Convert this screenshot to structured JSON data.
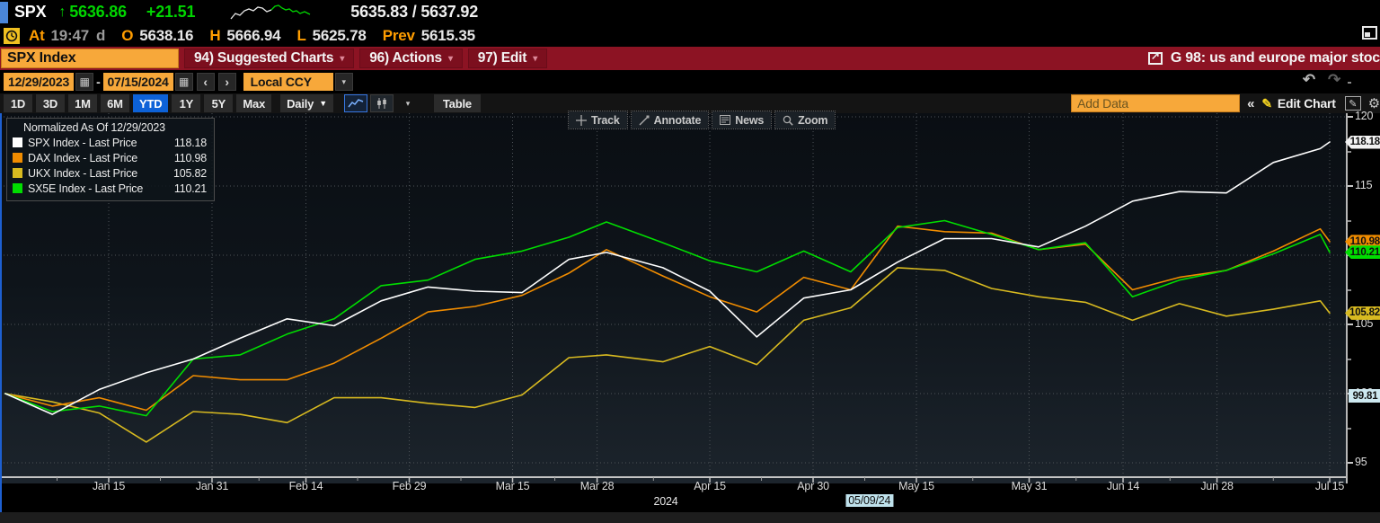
{
  "security_header": {
    "ticker": "SPX",
    "direction_arrow": "↑",
    "last_price": "5636.86",
    "change": "+21.51",
    "bid": "5635.83",
    "sep": "/",
    "ask": "5637.92",
    "at_label": "At",
    "time": "19:47",
    "delay_flag": "d",
    "open_label": "O",
    "open": "5638.16",
    "high_label": "H",
    "high": "5666.94",
    "low_label": "L",
    "low": "5625.78",
    "prev_label": "Prev",
    "prev": "5615.35"
  },
  "command_bar": {
    "security_input": "SPX Index",
    "menus": [
      "94) Suggested Charts",
      "96) Actions",
      "97) Edit"
    ],
    "chart_title": "G 98: us and europe major stoc"
  },
  "range_bar": {
    "start_date": "12/29/2023",
    "separator": "-",
    "end_date": "07/15/2024",
    "currency": "Local CCY",
    "prev_label": "‹",
    "next_label": "›"
  },
  "toolbar": {
    "periods": [
      "1D",
      "3D",
      "1M",
      "6M",
      "YTD",
      "1Y",
      "5Y",
      "Max"
    ],
    "selected_period": "YTD",
    "frequency": "Daily",
    "table_label": "Table",
    "add_data_placeholder": "Add Data",
    "collapse_label": "«",
    "edit_chart_label": "Edit Chart"
  },
  "chart_tools": [
    "Track",
    "Annotate",
    "News",
    "Zoom"
  ],
  "legend": {
    "title": "Normalized As Of 12/29/2023",
    "items": [
      {
        "name": "SPX Index - Last Price",
        "value": "118.18",
        "color": "#ffffff"
      },
      {
        "name": "DAX Index - Last Price",
        "value": "110.98",
        "color": "#f08c00"
      },
      {
        "name": "UKX Index - Last Price",
        "value": "105.82",
        "color": "#d8ba20"
      },
      {
        "name": "SX5E Index - Last Price",
        "value": "110.21",
        "color": "#00dd00"
      }
    ]
  },
  "chart_data": {
    "type": "line",
    "title": "Normalized As Of 12/29/2023",
    "normalized_base": 100,
    "ylim": [
      94.2,
      120.2
    ],
    "y_ticks": [
      95,
      100,
      105,
      110,
      115,
      120
    ],
    "x_year_label": "2024",
    "crosshair_date": "05/09/24",
    "crosshair_t": 92,
    "crosshair_value": "99.81",
    "x_ticks": [
      {
        "label": "Jan 15",
        "t": 11
      },
      {
        "label": "Jan 31",
        "t": 22
      },
      {
        "label": "Feb 14",
        "t": 32
      },
      {
        "label": "Feb 29",
        "t": 43
      },
      {
        "label": "Mar 15",
        "t": 54
      },
      {
        "label": "Mar 28",
        "t": 63
      },
      {
        "label": "Apr 15",
        "t": 75
      },
      {
        "label": "Apr 30",
        "t": 86
      },
      {
        "label": "May 15",
        "t": 97
      },
      {
        "label": "May 31",
        "t": 109
      },
      {
        "label": "Jun 14",
        "t": 119
      },
      {
        "label": "Jun 28",
        "t": 129
      },
      {
        "label": "Jul 15",
        "t": 141
      }
    ],
    "t_max": 141,
    "dates": [
      "12/29",
      "01/05",
      "01/12",
      "01/19",
      "01/26",
      "02/02",
      "02/09",
      "02/16",
      "02/23",
      "03/01",
      "03/08",
      "03/15",
      "03/22",
      "03/28",
      "04/05",
      "04/12",
      "04/19",
      "04/26",
      "05/03",
      "05/10",
      "05/17",
      "05/24",
      "05/31",
      "06/07",
      "06/14",
      "06/21",
      "06/28",
      "07/05",
      "07/12",
      "07/15"
    ],
    "t": [
      0,
      5,
      10,
      15,
      20,
      25,
      30,
      35,
      40,
      45,
      50,
      55,
      60,
      64,
      70,
      75,
      80,
      85,
      90,
      95,
      100,
      105,
      110,
      115,
      120,
      125,
      130,
      135,
      140,
      141
    ],
    "series": [
      {
        "name": "UKX Index",
        "color": "#d8ba20",
        "values": [
          100,
          99.4,
          98.6,
          96.5,
          98.7,
          98.5,
          97.9,
          99.7,
          99.7,
          99.3,
          99,
          99.9,
          102.6,
          102.8,
          102.3,
          103.4,
          102.1,
          105.3,
          106.2,
          109.1,
          108.9,
          107.6,
          107,
          106.6,
          105.3,
          106.5,
          105.6,
          106.1,
          106.7,
          105.82
        ]
      },
      {
        "name": "DAX Index",
        "color": "#f08c00",
        "values": [
          100,
          99.1,
          99.7,
          98.8,
          101.3,
          101,
          101,
          102.2,
          104,
          105.9,
          106.3,
          107.1,
          108.7,
          110.4,
          108.5,
          107,
          105.9,
          108.4,
          107.5,
          112.1,
          111.7,
          111.6,
          110.4,
          110.8,
          107.5,
          108.4,
          108.9,
          110.3,
          111.9,
          110.98
        ]
      },
      {
        "name": "SX5E Index",
        "color": "#00dd00",
        "values": [
          100,
          98.7,
          99.1,
          98.4,
          102.5,
          102.8,
          104.3,
          105.4,
          107.8,
          108.2,
          109.7,
          110.3,
          111.3,
          112.4,
          110.9,
          109.6,
          108.8,
          110.3,
          108.8,
          112,
          112.5,
          111.5,
          110.4,
          110.9,
          107,
          108.2,
          108.9,
          110.1,
          111.5,
          110.21
        ]
      },
      {
        "name": "SPX Index",
        "color": "#ffffff",
        "values": [
          100,
          98.5,
          100.3,
          101.5,
          102.5,
          104,
          105.4,
          104.9,
          106.7,
          107.7,
          107.4,
          107.3,
          109.7,
          110.2,
          109.1,
          107.4,
          104.1,
          106.9,
          107.5,
          109.5,
          111.2,
          111.2,
          110.6,
          112.1,
          113.9,
          114.6,
          114.5,
          116.7,
          117.7,
          118.18
        ]
      }
    ],
    "axis_price_badges": [
      {
        "value": 118.18,
        "label": "118.18",
        "bg": "#f2f2f2",
        "shape": "arrow"
      },
      {
        "value": 110.98,
        "label": "110.98",
        "bg": "#f08c00",
        "shape": "arrow"
      },
      {
        "value": 110.21,
        "label": "110.21",
        "bg": "#00dd00",
        "shape": "arrow"
      },
      {
        "value": 105.82,
        "label": "105.82",
        "bg": "#d8ba20",
        "shape": "arrow"
      },
      {
        "value": 99.81,
        "label": "99.81",
        "bg": "#cde8f0",
        "shape": "rect"
      }
    ]
  },
  "sparkline": {
    "white": [
      [
        2,
        18
      ],
      [
        7,
        12
      ],
      [
        12,
        14
      ],
      [
        17,
        9
      ],
      [
        22,
        7
      ],
      [
        27,
        9
      ],
      [
        32,
        5
      ],
      [
        37,
        6
      ],
      [
        42,
        10
      ],
      [
        47,
        8
      ]
    ],
    "green": [
      [
        47,
        8
      ],
      [
        51,
        4
      ],
      [
        55,
        3
      ],
      [
        59,
        6
      ],
      [
        63,
        8
      ],
      [
        67,
        7
      ],
      [
        71,
        10
      ],
      [
        75,
        9
      ],
      [
        79,
        12
      ],
      [
        84,
        10
      ],
      [
        90,
        13
      ]
    ]
  },
  "colors": {
    "accent_orange": "#f7a83a",
    "bar_red": "#8c1323",
    "selected_blue": "#0d62d8",
    "price_green": "#00d400",
    "label_orange": "#ff9d00"
  }
}
